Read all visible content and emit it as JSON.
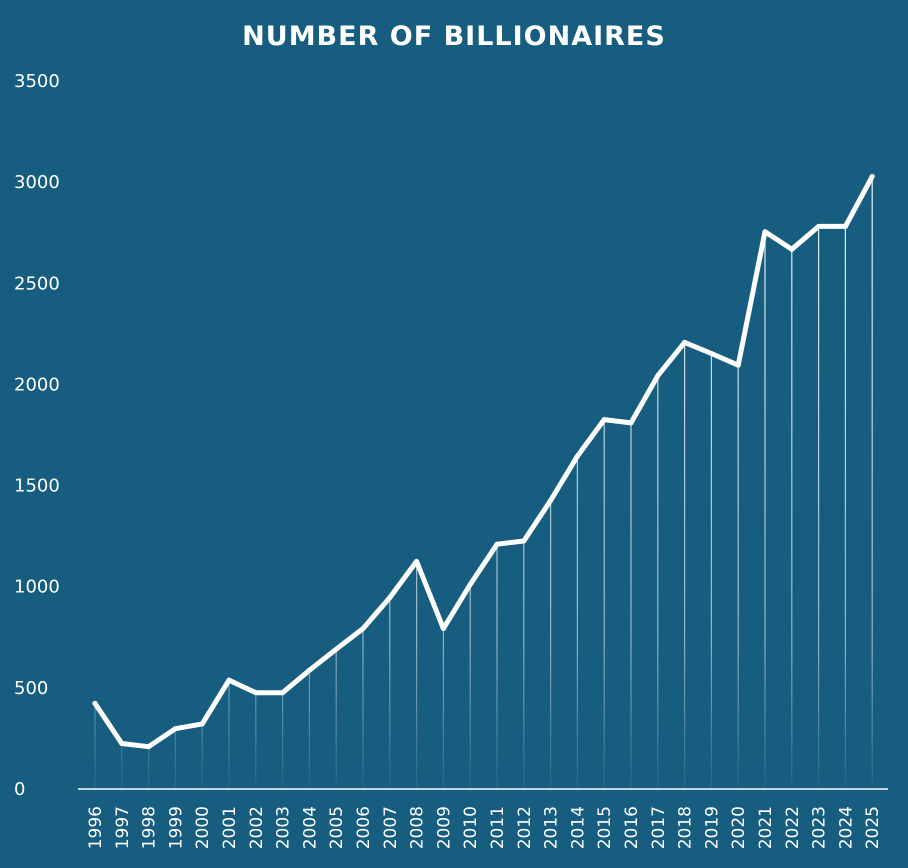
{
  "chart_data": {
    "type": "line",
    "title": "NUMBER OF BILLIONAIRES",
    "xlabel": "",
    "ylabel": "",
    "ylim": [
      0,
      3500
    ],
    "yticks": [
      "0",
      "500",
      "1000",
      "1500",
      "2000",
      "2500",
      "3000",
      "3500"
    ],
    "grid": false,
    "legend": "none",
    "categories": [
      "1996",
      "1997",
      "1998",
      "1999",
      "2000",
      "2001",
      "2002",
      "2003",
      "2004",
      "2005",
      "2006",
      "2007",
      "2008",
      "2009",
      "2010",
      "2011",
      "2012",
      "2013",
      "2014",
      "2015",
      "2016",
      "2017",
      "2018",
      "2019",
      "2020",
      "2021",
      "2022",
      "2023",
      "2024",
      "2025"
    ],
    "series": [
      {
        "values": [
          423,
          225,
          209,
          298,
          322,
          538,
          476,
          476,
          587,
          691,
          793,
          946,
          1125,
          793,
          1011,
          1210,
          1226,
          1426,
          1645,
          1826,
          1810,
          2043,
          2208,
          2153,
          2095,
          2755,
          2668,
          2781,
          2781,
          3028
        ]
      }
    ],
    "colors": {
      "background": "#165d80",
      "line": "#ffffff",
      "text": "#ffffff"
    }
  }
}
